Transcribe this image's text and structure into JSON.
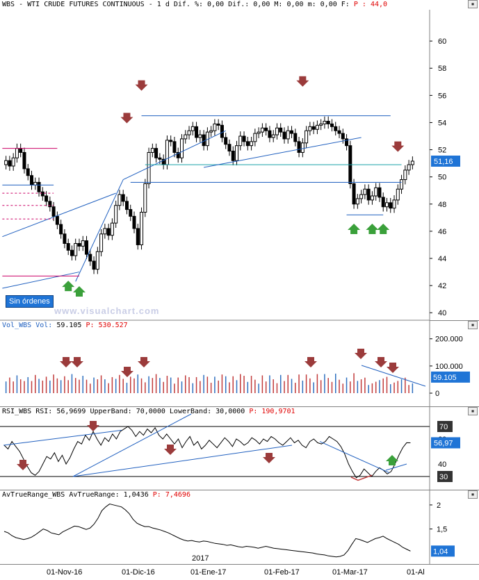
{
  "header_main": {
    "title": "WBS - WTI CRUDE FUTURES CONTINUOUS -",
    "tf": "1 d",
    "dif_pct": "Dif. %: 0,00",
    "dif": "Dif.: 0,00",
    "m": "M: 0,00",
    "mm": "m: 0,00",
    "f": "F:",
    "p": "P : 44,0"
  },
  "header_vol": {
    "name": "Vol_WBS",
    "lbl": "Vol:",
    "val": "59.105",
    "p": "P: 530.527"
  },
  "header_rsi": {
    "name": "RSI_WBS",
    "lbl": "RSI:",
    "val": "56,9699",
    "ub": "UpperBand: 70,0000",
    "lb": "LowerBand: 30,0000",
    "p": "P: 190,9701"
  },
  "header_atr": {
    "name": "AvTrueRange_WBS",
    "lbl": "AvTrueRange:",
    "val": "1,0436",
    "p": "P: 7,4696"
  },
  "price_axis": {
    "ticks": [
      "60",
      "58",
      "56",
      "54",
      "52",
      "50",
      "48",
      "46",
      "44",
      "42",
      "40"
    ],
    "last": "51,16"
  },
  "vol_axis": {
    "ticks": [
      "200.000",
      "100.000",
      "0"
    ],
    "last": "59.105"
  },
  "rsi_axis": {
    "top": "70",
    "bottom": "30",
    "ticks": [
      "60",
      "40"
    ],
    "last": "56,97"
  },
  "atr_axis": {
    "ticks": [
      "2",
      "1,5"
    ],
    "last": "1,04"
  },
  "dates": {
    "year": "2017",
    "labels": [
      "01-Nov-16",
      "01-Dic-16",
      "01-Ene-17",
      "01-Feb-17",
      "01-Mar-17",
      "01-Al"
    ]
  },
  "button_label": "Sin órdenes",
  "watermark": "www.visualchart.com",
  "colors": {
    "price_line": "#1f5fbf",
    "resistance": "#cc0066",
    "arrow_down": "#9b3b3b",
    "arrow_up": "#3aa03a",
    "vol_bar_red": "#c23b3b",
    "vol_bar_blue": "#2e6fbf",
    "axis_box": "#1f74d6"
  },
  "chart_data": [
    {
      "type": "candlestick",
      "title": "WBS - WTI CRUDE FUTURES CONTINUOUS",
      "ylim": [
        39.5,
        62
      ],
      "close": [
        51.2,
        50.8,
        51.4,
        52.1,
        51.8,
        50.6,
        50.1,
        49.4,
        49.6,
        48.9,
        48.6,
        48.2,
        47.8,
        47.1,
        46.5,
        45.8,
        45.1,
        44.6,
        44.2,
        45.1,
        44.9,
        45.3,
        44.3,
        43.8,
        43.2,
        44.5,
        45.8,
        46.2,
        45.7,
        46.6,
        47.9,
        48.7,
        48.2,
        47.6,
        47.1,
        46.2,
        45.0,
        47.4,
        49.5,
        51.8,
        52.1,
        51.4,
        51.3,
        50.9,
        52.7,
        52.6,
        51.8,
        51.4,
        52.8,
        53.1,
        53.4,
        53.7,
        52.9,
        53.1,
        52.3,
        53.3,
        53.4,
        53.9,
        53.8,
        52.9,
        52.4,
        51.9,
        51.2,
        52.3,
        53.0,
        52.6,
        52.3,
        52.6,
        53.2,
        53.3,
        53.6,
        53.4,
        52.9,
        53.1,
        53.6,
        53.3,
        52.8,
        53.4,
        53.2,
        52.6,
        51.8,
        52.5,
        53.4,
        53.7,
        53.5,
        53.8,
        53.9,
        54.1,
        53.9,
        53.7,
        53.4,
        53.2,
        52.8,
        52.3,
        49.5,
        48.0,
        48.4,
        48.7,
        49.1,
        48.3,
        48.6,
        49.2,
        48.5,
        47.8,
        48.1,
        47.7,
        48.3,
        49.1,
        49.8,
        50.5,
        50.9,
        51.16
      ]
    },
    {
      "type": "bar",
      "name": "Vol",
      "ylim": [
        0,
        230000
      ],
      "last": 59105
    },
    {
      "type": "line",
      "name": "RSI",
      "ylim": [
        20,
        80
      ],
      "bands": [
        70,
        30
      ],
      "last": 56.97
    },
    {
      "type": "line",
      "name": "AvTrueRange",
      "ylim": [
        0.8,
        2.1
      ],
      "last": 1.04
    }
  ]
}
